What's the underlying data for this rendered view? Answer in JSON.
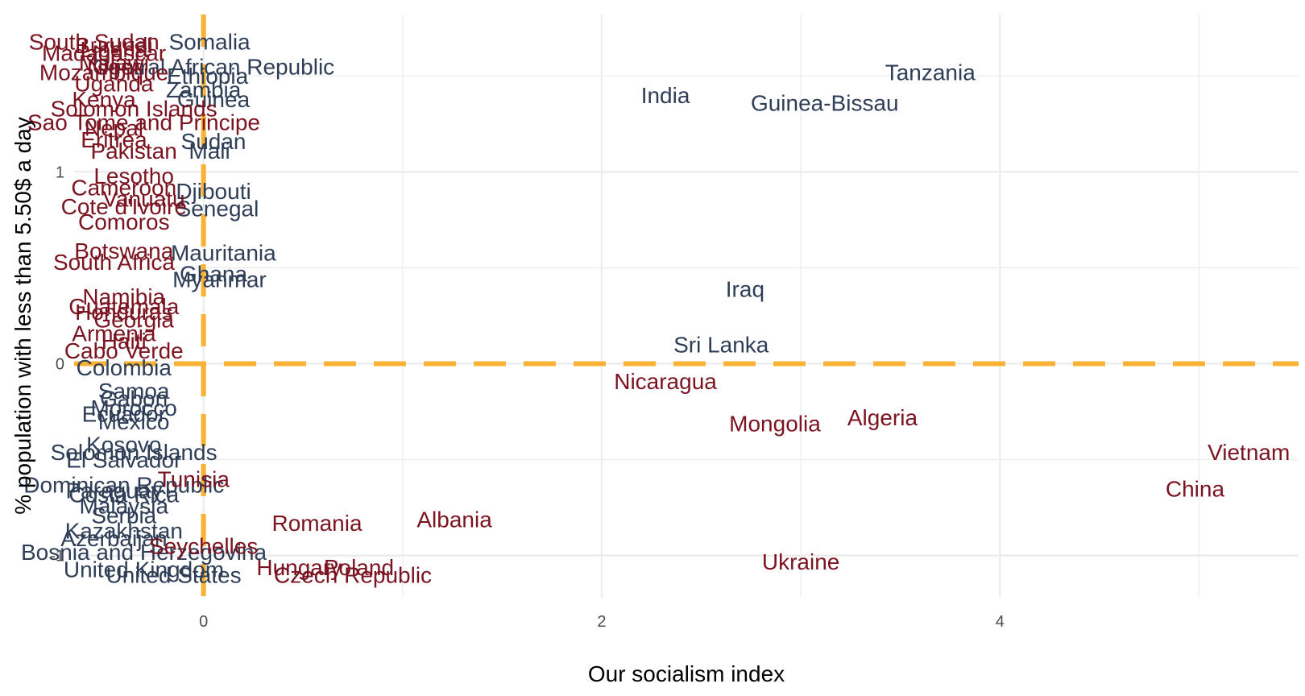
{
  "colors": {
    "group_a": "#2f3e57",
    "group_b": "#7b1420",
    "ref_line": "#f9b233",
    "grid": "#ebebeb"
  },
  "chart_data": {
    "type": "scatter",
    "xlabel": "Our socialism index",
    "ylabel": "% population with less than 5.50$ a day",
    "xlim": [
      -0.65,
      5.5
    ],
    "ylim": [
      -1.22,
      1.82
    ],
    "x_ticks": [
      0,
      2,
      4
    ],
    "y_ticks": [
      -1,
      0,
      1
    ],
    "grid": true,
    "reference_lines": {
      "x": 0,
      "y": 0
    },
    "points": [
      {
        "label": "Somalia",
        "x": 0.03,
        "y": 1.68,
        "group": "a"
      },
      {
        "label": "Tanzania",
        "x": 3.65,
        "y": 1.52,
        "group": "a"
      },
      {
        "label": "India",
        "x": 2.32,
        "y": 1.4,
        "group": "a"
      },
      {
        "label": "Guinea-Bissau",
        "x": 3.12,
        "y": 1.36,
        "group": "a"
      },
      {
        "label": "Central African Republic",
        "x": 0.05,
        "y": 1.55,
        "group": "a"
      },
      {
        "label": "Ethiopia",
        "x": 0.02,
        "y": 1.5,
        "group": "a"
      },
      {
        "label": "Zambia",
        "x": 0.0,
        "y": 1.43,
        "group": "a"
      },
      {
        "label": "Guinea",
        "x": 0.05,
        "y": 1.38,
        "group": "a"
      },
      {
        "label": "Sudan",
        "x": 0.05,
        "y": 1.16,
        "group": "a"
      },
      {
        "label": "Mali",
        "x": 0.03,
        "y": 1.11,
        "group": "a"
      },
      {
        "label": "Djibouti",
        "x": 0.05,
        "y": 0.9,
        "group": "a"
      },
      {
        "label": "Senegal",
        "x": 0.07,
        "y": 0.81,
        "group": "a"
      },
      {
        "label": "Mauritania",
        "x": 0.1,
        "y": 0.58,
        "group": "a"
      },
      {
        "label": "Ghana",
        "x": 0.05,
        "y": 0.47,
        "group": "a"
      },
      {
        "label": "Myanmar",
        "x": 0.08,
        "y": 0.44,
        "group": "a"
      },
      {
        "label": "Iraq",
        "x": 2.72,
        "y": 0.39,
        "group": "a"
      },
      {
        "label": "Sri Lanka",
        "x": 2.6,
        "y": 0.1,
        "group": "a"
      },
      {
        "label": "Colombia",
        "x": -0.4,
        "y": -0.02,
        "group": "a"
      },
      {
        "label": "Samoa",
        "x": -0.35,
        "y": -0.14,
        "group": "a"
      },
      {
        "label": "Gabon",
        "x": -0.35,
        "y": -0.18,
        "group": "a"
      },
      {
        "label": "Morocco",
        "x": -0.35,
        "y": -0.23,
        "group": "a"
      },
      {
        "label": "Ecuador",
        "x": -0.4,
        "y": -0.26,
        "group": "a"
      },
      {
        "label": "Mexico",
        "x": -0.35,
        "y": -0.3,
        "group": "a"
      },
      {
        "label": "Kosovo",
        "x": -0.4,
        "y": -0.42,
        "group": "a"
      },
      {
        "label": "Solomon Islands",
        "x": -0.35,
        "y": -0.46,
        "group": "a"
      },
      {
        "label": "El Salvador",
        "x": -0.4,
        "y": -0.5,
        "group": "a"
      },
      {
        "label": "Dominican Republic",
        "x": -0.4,
        "y": -0.63,
        "group": "a"
      },
      {
        "label": "Paraguay",
        "x": -0.45,
        "y": -0.66,
        "group": "a"
      },
      {
        "label": "Costa Rica",
        "x": -0.4,
        "y": -0.68,
        "group": "a"
      },
      {
        "label": "Malaysia",
        "x": -0.4,
        "y": -0.74,
        "group": "a"
      },
      {
        "label": "Serbia",
        "x": -0.4,
        "y": -0.79,
        "group": "a"
      },
      {
        "label": "Kazakhstan",
        "x": -0.4,
        "y": -0.87,
        "group": "a"
      },
      {
        "label": "Azerbaijan",
        "x": -0.45,
        "y": -0.91,
        "group": "a"
      },
      {
        "label": "Bosnia and Herzegovina",
        "x": -0.3,
        "y": -0.98,
        "group": "a"
      },
      {
        "label": "United States",
        "x": -0.15,
        "y": -1.1,
        "group": "a"
      },
      {
        "label": "United Kingdom",
        "x": -0.3,
        "y": -1.07,
        "group": "a"
      },
      {
        "label": "South Sudan",
        "x": -0.55,
        "y": 1.68,
        "group": "b"
      },
      {
        "label": "Burundi",
        "x": -0.45,
        "y": 1.66,
        "group": "b"
      },
      {
        "label": "Liberia",
        "x": -0.45,
        "y": 1.64,
        "group": "b"
      },
      {
        "label": "Madagascar",
        "x": -0.5,
        "y": 1.62,
        "group": "b"
      },
      {
        "label": "Malawi",
        "x": -0.45,
        "y": 1.57,
        "group": "b"
      },
      {
        "label": "Niger",
        "x": -0.45,
        "y": 1.55,
        "group": "b"
      },
      {
        "label": "Mozambique",
        "x": -0.5,
        "y": 1.52,
        "group": "b"
      },
      {
        "label": "Uganda",
        "x": -0.45,
        "y": 1.46,
        "group": "b"
      },
      {
        "label": "Kenya",
        "x": -0.5,
        "y": 1.38,
        "group": "b"
      },
      {
        "label": "Solomon Islands",
        "x": -0.35,
        "y": 1.33,
        "group": "b"
      },
      {
        "label": "Sao Tome and Principe",
        "x": -0.3,
        "y": 1.26,
        "group": "b"
      },
      {
        "label": "Nepal",
        "x": -0.45,
        "y": 1.23,
        "group": "b"
      },
      {
        "label": "Eritrea",
        "x": -0.45,
        "y": 1.17,
        "group": "b"
      },
      {
        "label": "Pakistan",
        "x": -0.35,
        "y": 1.11,
        "group": "b"
      },
      {
        "label": "Lesotho",
        "x": -0.35,
        "y": 0.98,
        "group": "b"
      },
      {
        "label": "Cameroon",
        "x": -0.4,
        "y": 0.92,
        "group": "b"
      },
      {
        "label": "Vanuatu",
        "x": -0.3,
        "y": 0.86,
        "group": "b"
      },
      {
        "label": "Cote d'Ivoire",
        "x": -0.4,
        "y": 0.82,
        "group": "b"
      },
      {
        "label": "Comoros",
        "x": -0.4,
        "y": 0.74,
        "group": "b"
      },
      {
        "label": "Botswana",
        "x": -0.4,
        "y": 0.59,
        "group": "b"
      },
      {
        "label": "South Africa",
        "x": -0.45,
        "y": 0.53,
        "group": "b"
      },
      {
        "label": "Namibia",
        "x": -0.4,
        "y": 0.35,
        "group": "b"
      },
      {
        "label": "Guatemala",
        "x": -0.4,
        "y": 0.3,
        "group": "b"
      },
      {
        "label": "Honduras",
        "x": -0.4,
        "y": 0.27,
        "group": "b"
      },
      {
        "label": "Georgia",
        "x": -0.35,
        "y": 0.23,
        "group": "b"
      },
      {
        "label": "Armenia",
        "x": -0.45,
        "y": 0.16,
        "group": "b"
      },
      {
        "label": "Haiti",
        "x": -0.4,
        "y": 0.12,
        "group": "b"
      },
      {
        "label": "Cabo Verde",
        "x": -0.4,
        "y": 0.07,
        "group": "b"
      },
      {
        "label": "Nicaragua",
        "x": 2.32,
        "y": -0.09,
        "group": "b"
      },
      {
        "label": "Mongolia",
        "x": 2.87,
        "y": -0.31,
        "group": "b"
      },
      {
        "label": "Algeria",
        "x": 3.41,
        "y": -0.28,
        "group": "b"
      },
      {
        "label": "Vietnam",
        "x": 5.25,
        "y": -0.46,
        "group": "b"
      },
      {
        "label": "China",
        "x": 4.98,
        "y": -0.65,
        "group": "b"
      },
      {
        "label": "Tunisia",
        "x": -0.05,
        "y": -0.6,
        "group": "b"
      },
      {
        "label": "Romania",
        "x": 0.57,
        "y": -0.83,
        "group": "b"
      },
      {
        "label": "Albania",
        "x": 1.26,
        "y": -0.81,
        "group": "b"
      },
      {
        "label": "Seychelles",
        "x": 0.0,
        "y": -0.95,
        "group": "b"
      },
      {
        "label": "Ukraine",
        "x": 3.0,
        "y": -1.03,
        "group": "b"
      },
      {
        "label": "Hungary",
        "x": 0.48,
        "y": -1.06,
        "group": "b"
      },
      {
        "label": "Poland",
        "x": 0.78,
        "y": -1.06,
        "group": "b"
      },
      {
        "label": "Czech Republic",
        "x": 0.75,
        "y": -1.1,
        "group": "b"
      }
    ]
  }
}
